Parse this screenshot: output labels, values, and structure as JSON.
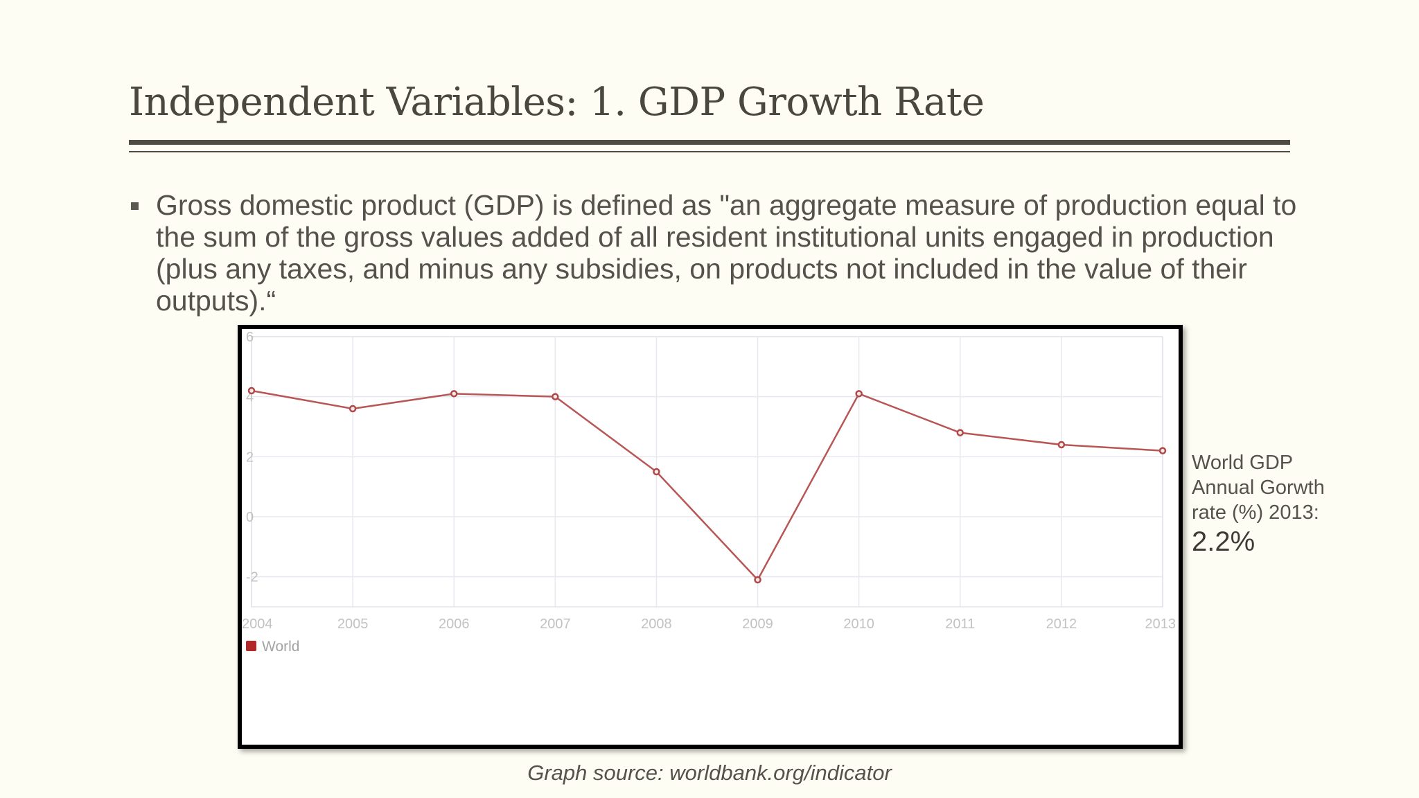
{
  "slide": {
    "title": "Independent Variables: 1. GDP Growth Rate",
    "bullet": "Gross domestic product (GDP) is defined as \"an aggregate measure of production equal to the sum of the gross values added of all resident institutional units engaged in production (plus any taxes, and minus any subsidies, on products not included in the value of their outputs).“",
    "side_note": {
      "text": "World GDP Annual Gorwth rate (%) 2013:",
      "value": "2.2%"
    },
    "source": "Graph source: worldbank.org/indicator"
  },
  "chart_data": {
    "type": "line",
    "title": "",
    "xlabel": "",
    "ylabel": "",
    "categories": [
      "2004",
      "2005",
      "2006",
      "2007",
      "2008",
      "2009",
      "2010",
      "2011",
      "2012",
      "2013"
    ],
    "series": [
      {
        "name": "World",
        "values": [
          4.2,
          3.6,
          4.1,
          4.0,
          1.5,
          -2.1,
          4.1,
          2.8,
          2.4,
          2.2
        ],
        "color": "#b85656"
      }
    ],
    "yticks": [
      -2,
      0,
      2,
      4,
      6
    ],
    "ylim": [
      -3,
      6
    ],
    "grid": true,
    "legend": "bottom-left"
  },
  "colors": {
    "background": "#fdfdf3",
    "text": "#4e4b45",
    "series": "#b85656",
    "legend_swatch": "#b22727"
  }
}
